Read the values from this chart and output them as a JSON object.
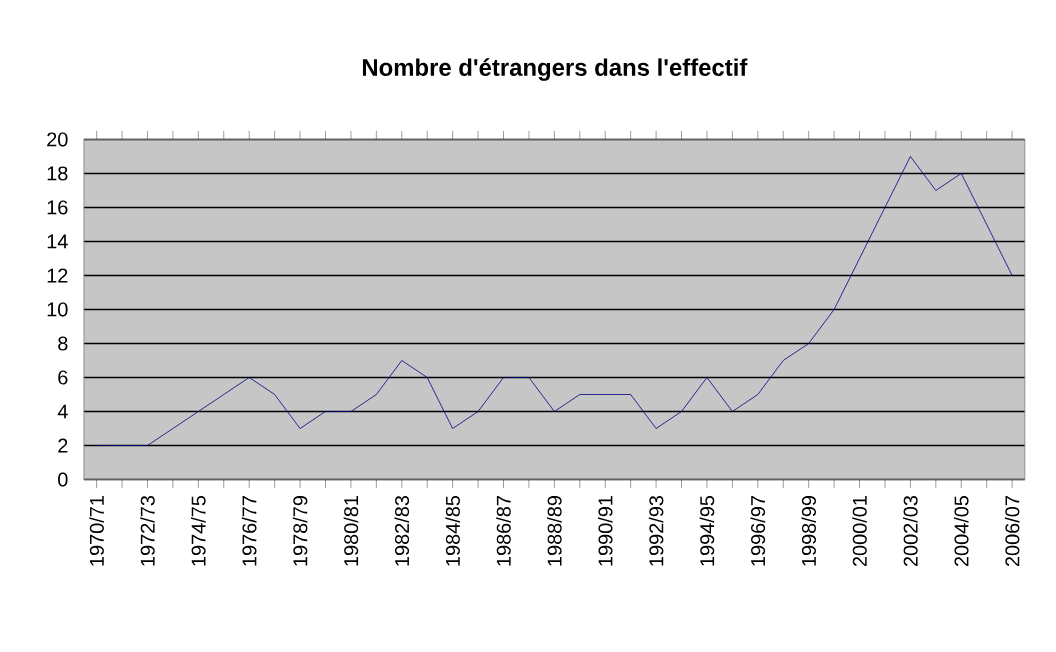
{
  "chart_data": {
    "type": "line",
    "title": "Nombre d'étrangers dans l'effectif",
    "categories": [
      "1970/71",
      null,
      "1972/73",
      null,
      "1974/75",
      null,
      "1976/77",
      null,
      "1978/79",
      null,
      "1980/81",
      null,
      "1982/83",
      null,
      "1984/85",
      null,
      "1986/87",
      null,
      "1988/89",
      null,
      "1990/91",
      null,
      "1992/93",
      null,
      "1994/95",
      null,
      "1996/97",
      null,
      "1998/99",
      null,
      "2000/01",
      null,
      "2002/03",
      null,
      "2004/05",
      null,
      "2006/07"
    ],
    "values": [
      2,
      2,
      2,
      3,
      4,
      5,
      6,
      5,
      3,
      4,
      4,
      5,
      7,
      6,
      3,
      4,
      6,
      6,
      4,
      5,
      5,
      5,
      3,
      4,
      6,
      4,
      5,
      7,
      8,
      10,
      13,
      16,
      19,
      17,
      18,
      15,
      12
    ],
    "color": "#000080",
    "ylim": [
      0,
      20
    ],
    "yticks": [
      0,
      2,
      4,
      6,
      8,
      10,
      12,
      14,
      16,
      18,
      20
    ],
    "grid": "y",
    "marker": "none",
    "line_style": "solid"
  }
}
